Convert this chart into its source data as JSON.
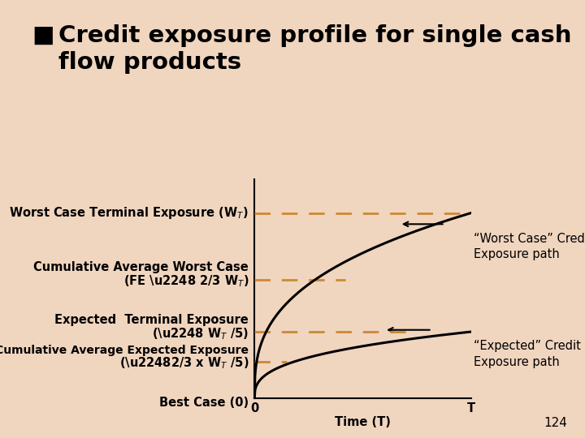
{
  "title_fontsize": 21,
  "title_color": "#000000",
  "bg_color": "#f0d5bf",
  "y_levels": {
    "worst_case": 1.0,
    "cum_avg_worst": 0.64,
    "expected_terminal": 0.36,
    "cum_avg_expected": 0.2,
    "best_case": 0.0
  },
  "dashed_color": "#cc8833",
  "curve_color": "#000000",
  "arrow_color": "#000000",
  "annotation_worst": "“Worst Case” Credit\nExposure path",
  "annotation_expected": "“Expected” Credit\nExposure path",
  "page_number": "124",
  "label_fontsize": 10.5,
  "annotation_fontsize": 10.5
}
